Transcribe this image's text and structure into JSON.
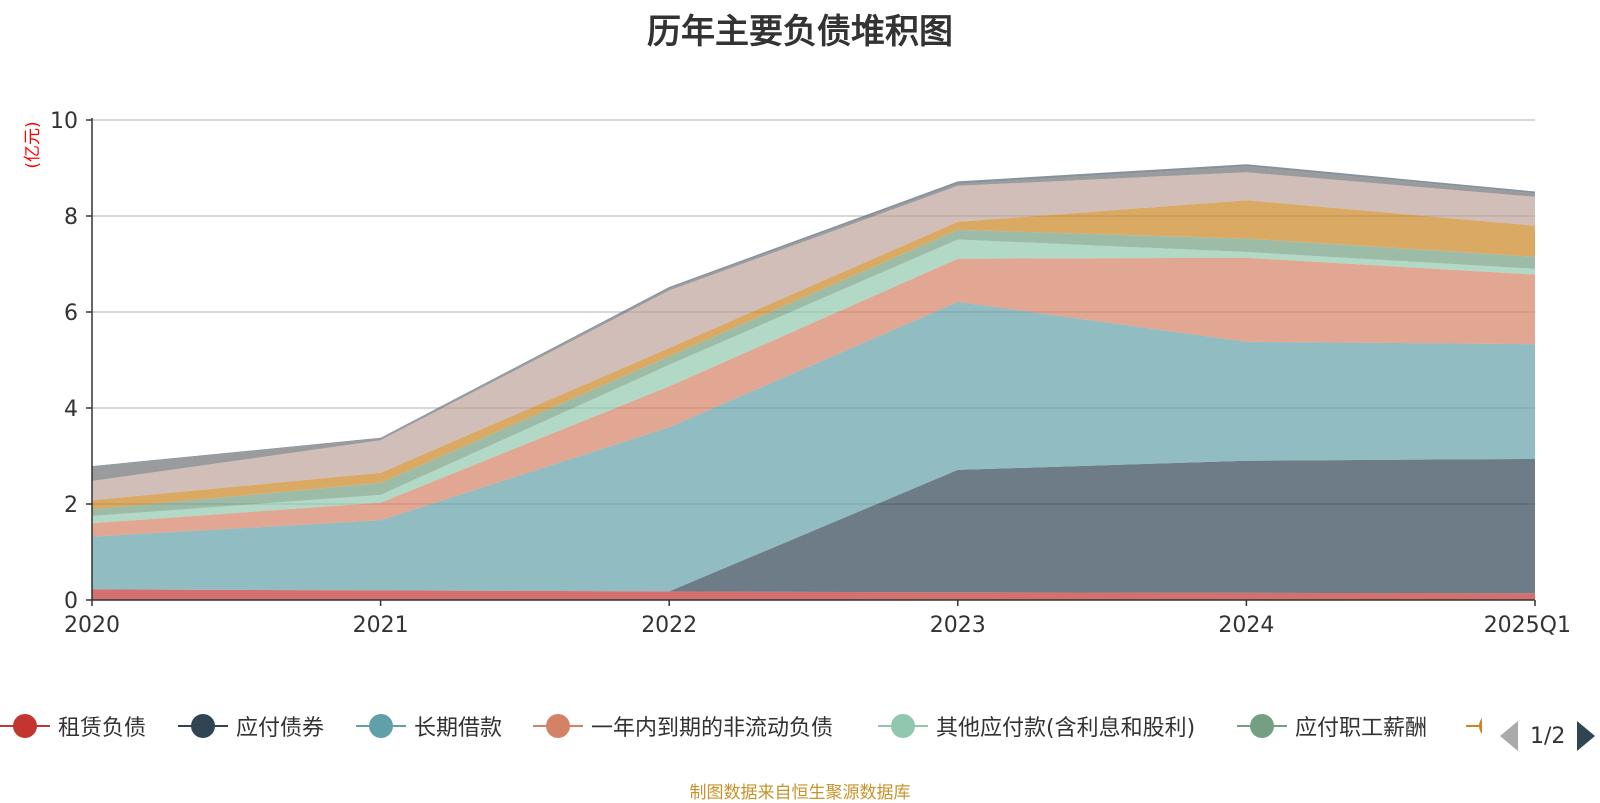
{
  "chart_data": {
    "type": "area",
    "title": "历年主要负债堆积图",
    "ylabel": "(亿元)",
    "xlabel": "",
    "stacked": true,
    "grid": true,
    "categories": [
      "2020",
      "2021",
      "2022",
      "2023",
      "2024",
      "2025Q1"
    ],
    "ylim": [
      0,
      10
    ],
    "yticks": [
      0,
      2,
      4,
      6,
      8,
      10
    ],
    "legend_position": "bottom",
    "series": [
      {
        "name": "租赁负债",
        "color": "#c23531",
        "values": [
          0.22,
          0.2,
          0.18,
          0.16,
          0.15,
          0.14
        ]
      },
      {
        "name": "应付债券",
        "color": "#2f4554",
        "values": [
          0,
          0,
          0,
          2.55,
          2.75,
          2.8
        ]
      },
      {
        "name": "长期借款",
        "color": "#61a0a8",
        "values": [
          1.1,
          1.46,
          3.42,
          3.5,
          2.48,
          2.39
        ]
      },
      {
        "name": "一年内到期的非流动负债",
        "color": "#d48265",
        "values": [
          0.28,
          0.37,
          0.85,
          0.9,
          1.75,
          1.45
        ]
      },
      {
        "name": "其他应付款(含利息和股利)",
        "color": "#91c7ae",
        "values": [
          0.15,
          0.16,
          0.45,
          0.4,
          0.12,
          0.12
        ]
      },
      {
        "name": "应付职工薪酬",
        "color": "#749f83",
        "values": [
          0.14,
          0.25,
          0.18,
          0.2,
          0.28,
          0.25
        ]
      },
      {
        "name": "",
        "color": "#ca8622",
        "values": [
          0.19,
          0.21,
          0.17,
          0.17,
          0.8,
          0.65
        ]
      },
      {
        "name": "",
        "color": "#bda29a",
        "values": [
          0.4,
          0.68,
          1.2,
          0.75,
          0.58,
          0.6
        ]
      },
      {
        "name": "",
        "color": "#6e7074",
        "values": [
          0.29,
          0.03,
          0.04,
          0.04,
          0.12,
          0.07
        ]
      },
      {
        "name": "",
        "color": "#546570",
        "values": [
          0.02,
          0.02,
          0.03,
          0.05,
          0.05,
          0.04
        ]
      }
    ]
  },
  "legend": {
    "pager_text": "1/2"
  },
  "source_note": "制图数据来自恒生聚源数据库"
}
